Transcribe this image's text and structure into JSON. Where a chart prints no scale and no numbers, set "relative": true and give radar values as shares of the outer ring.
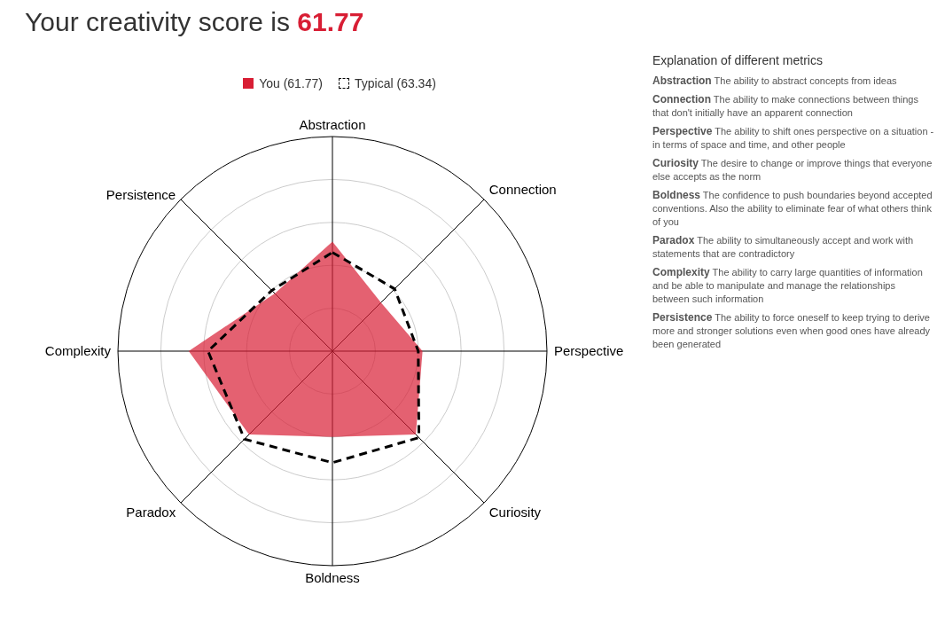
{
  "chart_data": {
    "type": "radar",
    "title": "Your creativity score is 61.77",
    "relative": true,
    "grid": true,
    "legend": "top",
    "categories": [
      "Abstraction",
      "Connection",
      "Perspective",
      "Curiosity",
      "Boldness",
      "Paradox",
      "Complexity",
      "Persistence"
    ],
    "series": [
      {
        "name": "You (61.77)",
        "color": "#d81e34",
        "values": [
          0.51,
          0.32,
          0.42,
          0.55,
          0.4,
          0.55,
          0.67,
          0.38
        ]
      },
      {
        "name": "Typical (63.34)",
        "color": "#000000",
        "line_style": "dashed",
        "values": [
          0.46,
          0.41,
          0.4,
          0.57,
          0.52,
          0.58,
          0.58,
          0.4
        ]
      }
    ],
    "annotations": [
      "Explanation of different metrics",
      "Abstraction The ability to abstract concepts from ideas",
      "Connection The ability to make connections between things that don't initially have an apparent connection",
      "Perspective The ability to shift ones perspective on a situation - in terms of space and time, and other people",
      "Curiosity The desire to change or improve things that everyone else accepts as the norm",
      "Boldness The confidence to push boundaries beyond accepted conventions. Also the ability to eliminate fear of what others think of you",
      "Paradox The ability to simultaneously accept and work with statements that are contradictory",
      "Complexity The ability to carry large quantities of information and be able to manipulate and manage the relationships between such information",
      "Persistence The ability to force oneself to keep trying to derive more and stronger solutions even when good ones have already been generated"
    ]
  }
}
